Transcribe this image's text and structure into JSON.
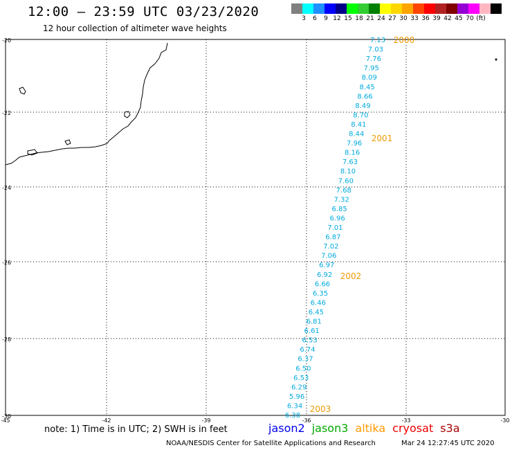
{
  "header": {
    "title": "12:00 – 23:59 UTC 03/23/2020",
    "subtitle": "12 hour collection of altimeter wave heights"
  },
  "colorbar": {
    "colors": [
      "#808080",
      "#00ffff",
      "#1e90ff",
      "#0000ff",
      "#00008b",
      "#00ff00",
      "#32cd32",
      "#008000",
      "#ffff00",
      "#ffd700",
      "#ffa500",
      "#ff4500",
      "#ff0000",
      "#b22222",
      "#800000",
      "#9400d3",
      "#ff00ff",
      "#ffb6c1",
      "#000000"
    ],
    "labels": [
      "3",
      "6",
      "9",
      "12",
      "15",
      "18",
      "21",
      "24",
      "27",
      "30",
      "33",
      "36",
      "39",
      "42",
      "45",
      "70",
      "(ft)"
    ]
  },
  "map": {
    "lat_labels": [
      "-20",
      "-22",
      "-24",
      "-26",
      "-28",
      "-30"
    ],
    "lon_labels": [
      "-45",
      "-42",
      "-39",
      "-36",
      "-33",
      "-30"
    ],
    "wave_heights": [
      "7.13",
      "7.03",
      "7.76",
      "7.95",
      "8.09",
      "8.45",
      "8.66",
      "8.49",
      "8.70",
      "8.41",
      "8.44",
      "7.96",
      "8.16",
      "7.63",
      "8.10",
      "7.60",
      "7.68",
      "7.32",
      "6.85",
      "6.96",
      "7.01",
      "6.87",
      "7.02",
      "7.06",
      "6.97",
      "6.92",
      "6.66",
      "6.35",
      "6.46",
      "6.45",
      "6.81",
      "6.61",
      "6.53",
      "6.74",
      "6.37",
      "6.50",
      "6.53",
      "6.29",
      "5.96",
      "6.34",
      "6.38"
    ],
    "time_labels": [
      "2000",
      "2001",
      "2002",
      "2003"
    ],
    "track_color": "#00aadd",
    "time_color": "#ee9900"
  },
  "footer": {
    "note": "note: 1) Time is in UTC; 2) SWH is in feet",
    "legend": [
      {
        "name": "jason2",
        "color": "#0000ee"
      },
      {
        "name": "jason3",
        "color": "#00aa00"
      },
      {
        "name": "altika",
        "color": "#ff9900"
      },
      {
        "name": "cryosat",
        "color": "#ee0000"
      },
      {
        "name": "s3a",
        "color": "#aa0000"
      }
    ],
    "credit": "NOAA/NESDIS Center for Satellite Applications and Research",
    "timestamp": "Mar 24 12:27:45 UTC 2020"
  }
}
